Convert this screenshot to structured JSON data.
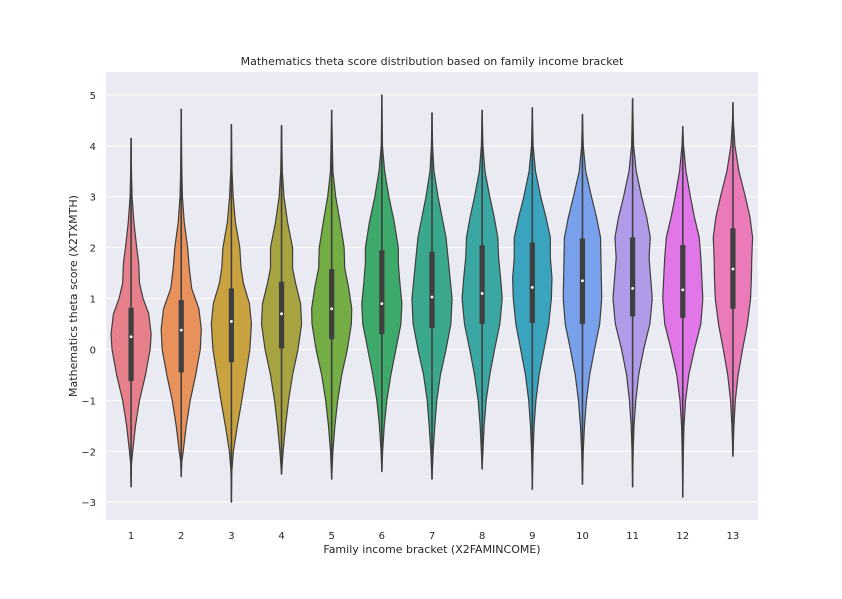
{
  "chart_data": {
    "type": "violin",
    "title": "Mathematics theta score distribution based on family income bracket",
    "xlabel": "Family income bracket (X2FAMINCOME)",
    "ylabel": "Mathematics theta score (X2TXMTH)",
    "ylim": [
      -3.35,
      5.45
    ],
    "yticks": [
      -3,
      -2,
      -1,
      0,
      1,
      2,
      3,
      4,
      5
    ],
    "ytick_labels": [
      "−3",
      "−2",
      "−1",
      "0",
      "1",
      "2",
      "3",
      "4",
      "5"
    ],
    "categories": [
      "1",
      "2",
      "3",
      "4",
      "5",
      "6",
      "7",
      "8",
      "9",
      "10",
      "11",
      "12",
      "13"
    ],
    "grid": true,
    "background": "#eaeaf2",
    "grid_color": "#ffffff",
    "series": [
      {
        "category": "1",
        "color": "#e8808c",
        "min": -2.7,
        "q1": -0.62,
        "median": 0.25,
        "q3": 0.82,
        "max": 4.15,
        "density": [
          [
            -2.7,
            0.0
          ],
          [
            -2.25,
            0.02
          ],
          [
            -2.0,
            0.08
          ],
          [
            -1.5,
            0.22
          ],
          [
            -1.0,
            0.42
          ],
          [
            -0.5,
            0.72
          ],
          [
            0.0,
            0.95
          ],
          [
            0.3,
            1.0
          ],
          [
            0.7,
            0.88
          ],
          [
            1.0,
            0.6
          ],
          [
            1.3,
            0.42
          ],
          [
            1.7,
            0.38
          ],
          [
            2.0,
            0.28
          ],
          [
            2.5,
            0.14
          ],
          [
            3.0,
            0.05
          ],
          [
            3.5,
            0.02
          ],
          [
            4.15,
            0.0
          ]
        ]
      },
      {
        "category": "2",
        "color": "#e9915a",
        "min": -2.5,
        "q1": -0.45,
        "median": 0.38,
        "q3": 0.97,
        "max": 4.72,
        "density": [
          [
            -2.5,
            0.0
          ],
          [
            -2.2,
            0.03
          ],
          [
            -2.0,
            0.1
          ],
          [
            -1.5,
            0.25
          ],
          [
            -1.0,
            0.45
          ],
          [
            -0.5,
            0.72
          ],
          [
            0.0,
            0.95
          ],
          [
            0.4,
            1.0
          ],
          [
            0.8,
            0.88
          ],
          [
            1.2,
            0.52
          ],
          [
            1.6,
            0.4
          ],
          [
            2.0,
            0.32
          ],
          [
            2.5,
            0.15
          ],
          [
            3.0,
            0.06
          ],
          [
            3.5,
            0.03
          ],
          [
            4.72,
            0.0
          ]
        ]
      },
      {
        "category": "3",
        "color": "#c9a240",
        "min": -3.0,
        "q1": -0.25,
        "median": 0.55,
        "q3": 1.2,
        "max": 4.42,
        "density": [
          [
            -3.0,
            0.0
          ],
          [
            -2.4,
            0.02
          ],
          [
            -2.0,
            0.1
          ],
          [
            -1.5,
            0.3
          ],
          [
            -1.0,
            0.52
          ],
          [
            -0.5,
            0.72
          ],
          [
            0.0,
            0.92
          ],
          [
            0.5,
            1.0
          ],
          [
            0.9,
            0.9
          ],
          [
            1.3,
            0.6
          ],
          [
            1.6,
            0.48
          ],
          [
            2.0,
            0.42
          ],
          [
            2.5,
            0.2
          ],
          [
            3.0,
            0.09
          ],
          [
            3.5,
            0.03
          ],
          [
            4.42,
            0.0
          ]
        ]
      },
      {
        "category": "4",
        "color": "#a8a341",
        "min": -2.45,
        "q1": 0.02,
        "median": 0.7,
        "q3": 1.33,
        "max": 4.4,
        "density": [
          [
            -2.45,
            0.0
          ],
          [
            -2.0,
            0.08
          ],
          [
            -1.5,
            0.2
          ],
          [
            -1.0,
            0.35
          ],
          [
            -0.5,
            0.55
          ],
          [
            0.0,
            0.82
          ],
          [
            0.5,
            1.0
          ],
          [
            0.9,
            0.95
          ],
          [
            1.3,
            0.7
          ],
          [
            1.6,
            0.55
          ],
          [
            2.0,
            0.55
          ],
          [
            2.5,
            0.3
          ],
          [
            3.0,
            0.12
          ],
          [
            3.5,
            0.04
          ],
          [
            4.4,
            0.0
          ]
        ]
      },
      {
        "category": "5",
        "color": "#73ad43",
        "min": -2.55,
        "q1": 0.2,
        "median": 0.8,
        "q3": 1.58,
        "max": 4.7,
        "density": [
          [
            -2.55,
            0.0
          ],
          [
            -2.0,
            0.06
          ],
          [
            -1.5,
            0.16
          ],
          [
            -1.0,
            0.3
          ],
          [
            -0.5,
            0.5
          ],
          [
            0.0,
            0.78
          ],
          [
            0.5,
            0.98
          ],
          [
            0.8,
            1.0
          ],
          [
            1.2,
            0.85
          ],
          [
            1.6,
            0.65
          ],
          [
            2.0,
            0.62
          ],
          [
            2.5,
            0.42
          ],
          [
            3.0,
            0.2
          ],
          [
            3.5,
            0.06
          ],
          [
            4.7,
            0.0
          ]
        ]
      },
      {
        "category": "6",
        "color": "#3daa6c",
        "min": -2.4,
        "q1": 0.3,
        "median": 0.9,
        "q3": 1.95,
        "max": 5.0,
        "density": [
          [
            -2.4,
            0.0
          ],
          [
            -2.0,
            0.04
          ],
          [
            -1.5,
            0.12
          ],
          [
            -1.0,
            0.25
          ],
          [
            -0.5,
            0.45
          ],
          [
            0.0,
            0.7
          ],
          [
            0.5,
            0.95
          ],
          [
            0.9,
            1.0
          ],
          [
            1.3,
            0.9
          ],
          [
            1.7,
            0.82
          ],
          [
            2.0,
            0.82
          ],
          [
            2.5,
            0.62
          ],
          [
            3.0,
            0.35
          ],
          [
            3.5,
            0.14
          ],
          [
            4.0,
            0.03
          ],
          [
            5.0,
            0.0
          ]
        ]
      },
      {
        "category": "7",
        "color": "#3aa88c",
        "min": -2.55,
        "q1": 0.42,
        "median": 1.03,
        "q3": 1.92,
        "max": 4.65,
        "density": [
          [
            -2.55,
            0.0
          ],
          [
            -2.0,
            0.06
          ],
          [
            -1.5,
            0.14
          ],
          [
            -1.0,
            0.24
          ],
          [
            -0.5,
            0.42
          ],
          [
            0.0,
            0.7
          ],
          [
            0.5,
            0.94
          ],
          [
            1.0,
            1.0
          ],
          [
            1.4,
            0.9
          ],
          [
            1.8,
            0.8
          ],
          [
            2.2,
            0.7
          ],
          [
            2.6,
            0.5
          ],
          [
            3.0,
            0.3
          ],
          [
            3.5,
            0.1
          ],
          [
            4.0,
            0.03
          ],
          [
            4.65,
            0.0
          ]
        ]
      },
      {
        "category": "8",
        "color": "#3ba7a2",
        "min": -2.35,
        "q1": 0.5,
        "median": 1.1,
        "q3": 2.05,
        "max": 4.7,
        "density": [
          [
            -2.35,
            0.0
          ],
          [
            -2.0,
            0.04
          ],
          [
            -1.5,
            0.1
          ],
          [
            -1.0,
            0.2
          ],
          [
            -0.5,
            0.38
          ],
          [
            0.0,
            0.62
          ],
          [
            0.5,
            0.88
          ],
          [
            1.0,
            1.0
          ],
          [
            1.4,
            0.92
          ],
          [
            1.8,
            0.82
          ],
          [
            2.2,
            0.78
          ],
          [
            2.6,
            0.6
          ],
          [
            3.0,
            0.38
          ],
          [
            3.5,
            0.14
          ],
          [
            4.0,
            0.04
          ],
          [
            4.7,
            0.0
          ]
        ]
      },
      {
        "category": "9",
        "color": "#3aa4bf",
        "min": -2.75,
        "q1": 0.52,
        "median": 1.22,
        "q3": 2.1,
        "max": 4.75,
        "density": [
          [
            -2.75,
            0.0
          ],
          [
            -2.0,
            0.04
          ],
          [
            -1.5,
            0.09
          ],
          [
            -1.0,
            0.18
          ],
          [
            -0.5,
            0.34
          ],
          [
            0.0,
            0.58
          ],
          [
            0.5,
            0.82
          ],
          [
            1.0,
            0.95
          ],
          [
            1.4,
            0.98
          ],
          [
            1.8,
            0.9
          ],
          [
            2.2,
            0.9
          ],
          [
            2.6,
            0.68
          ],
          [
            3.0,
            0.42
          ],
          [
            3.5,
            0.16
          ],
          [
            4.0,
            0.04
          ],
          [
            4.75,
            0.0
          ]
        ]
      },
      {
        "category": "10",
        "color": "#79a0ea",
        "min": -2.65,
        "q1": 0.5,
        "median": 1.35,
        "q3": 2.18,
        "max": 4.62,
        "density": [
          [
            -2.65,
            0.0
          ],
          [
            -2.0,
            0.04
          ],
          [
            -1.5,
            0.1
          ],
          [
            -1.0,
            0.2
          ],
          [
            -0.5,
            0.36
          ],
          [
            0.0,
            0.6
          ],
          [
            0.5,
            0.86
          ],
          [
            1.0,
            0.96
          ],
          [
            1.4,
            0.94
          ],
          [
            1.8,
            0.92
          ],
          [
            2.2,
            0.9
          ],
          [
            2.6,
            0.7
          ],
          [
            3.0,
            0.45
          ],
          [
            3.5,
            0.16
          ],
          [
            4.0,
            0.04
          ],
          [
            4.62,
            0.0
          ]
        ]
      },
      {
        "category": "11",
        "color": "#b09be8",
        "min": -2.7,
        "q1": 0.65,
        "median": 1.2,
        "q3": 2.2,
        "max": 4.93,
        "density": [
          [
            -2.7,
            0.0
          ],
          [
            -2.0,
            0.03
          ],
          [
            -1.5,
            0.07
          ],
          [
            -1.0,
            0.16
          ],
          [
            -0.5,
            0.3
          ],
          [
            0.0,
            0.55
          ],
          [
            0.5,
            0.86
          ],
          [
            1.0,
            0.98
          ],
          [
            1.4,
            0.9
          ],
          [
            1.8,
            0.82
          ],
          [
            2.2,
            0.88
          ],
          [
            2.6,
            0.7
          ],
          [
            3.0,
            0.45
          ],
          [
            3.5,
            0.18
          ],
          [
            4.0,
            0.05
          ],
          [
            4.93,
            0.0
          ]
        ]
      },
      {
        "category": "12",
        "color": "#e076e8",
        "min": -2.9,
        "q1": 0.62,
        "median": 1.17,
        "q3": 2.05,
        "max": 4.38,
        "density": [
          [
            -2.9,
            0.0
          ],
          [
            -2.0,
            0.03
          ],
          [
            -1.5,
            0.06
          ],
          [
            -1.0,
            0.14
          ],
          [
            -0.5,
            0.3
          ],
          [
            0.0,
            0.58
          ],
          [
            0.5,
            0.9
          ],
          [
            1.0,
            1.0
          ],
          [
            1.4,
            0.95
          ],
          [
            1.8,
            0.9
          ],
          [
            2.2,
            0.82
          ],
          [
            2.6,
            0.58
          ],
          [
            3.0,
            0.38
          ],
          [
            3.5,
            0.16
          ],
          [
            4.0,
            0.04
          ],
          [
            4.38,
            0.0
          ]
        ]
      },
      {
        "category": "13",
        "color": "#ea7ab8",
        "min": -2.1,
        "q1": 0.8,
        "median": 1.58,
        "q3": 2.38,
        "max": 4.85,
        "density": [
          [
            -2.1,
            0.0
          ],
          [
            -1.5,
            0.05
          ],
          [
            -1.0,
            0.12
          ],
          [
            -0.5,
            0.26
          ],
          [
            0.0,
            0.48
          ],
          [
            0.5,
            0.72
          ],
          [
            1.0,
            0.88
          ],
          [
            1.4,
            0.92
          ],
          [
            1.8,
            0.94
          ],
          [
            2.2,
            0.98
          ],
          [
            2.6,
            0.85
          ],
          [
            3.0,
            0.62
          ],
          [
            3.5,
            0.3
          ],
          [
            4.0,
            0.1
          ],
          [
            4.5,
            0.02
          ],
          [
            4.85,
            0.0
          ]
        ]
      }
    ]
  }
}
